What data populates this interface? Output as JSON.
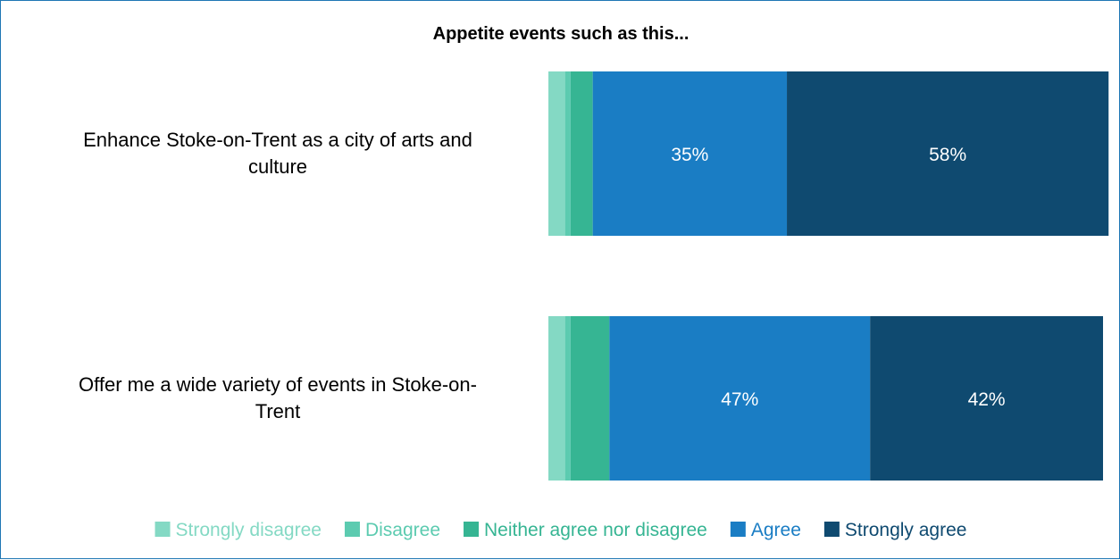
{
  "chart_data": {
    "type": "bar",
    "orientation": "horizontal",
    "stacked": true,
    "title": "Appetite events such as this...",
    "categories": [
      [
        "Enhance Stoke-on-Trent as a city of arts and",
        "culture"
      ],
      [
        "Offer me a wide variety of events in Stoke-on-",
        "Trent"
      ]
    ],
    "series": [
      {
        "name": "Strongly disagree",
        "color": "#84d9c4",
        "values": [
          3,
          3
        ],
        "labels": [
          "",
          ""
        ]
      },
      {
        "name": "Disagree",
        "color": "#5ccbb0",
        "values": [
          1,
          1
        ],
        "labels": [
          "",
          ""
        ]
      },
      {
        "name": "Neither agree nor disagree",
        "color": "#36b593",
        "values": [
          4,
          7
        ],
        "labels": [
          "",
          ""
        ]
      },
      {
        "name": "Agree",
        "color": "#1a7dc4",
        "values": [
          35,
          47
        ],
        "labels": [
          "35%",
          "47%"
        ]
      },
      {
        "name": "Strongly agree",
        "color": "#0f4a70",
        "values": [
          58,
          42
        ],
        "labels": [
          "58%",
          "42%"
        ]
      }
    ],
    "xlim": [
      0,
      100
    ],
    "grid": false,
    "legend": "bottom"
  }
}
